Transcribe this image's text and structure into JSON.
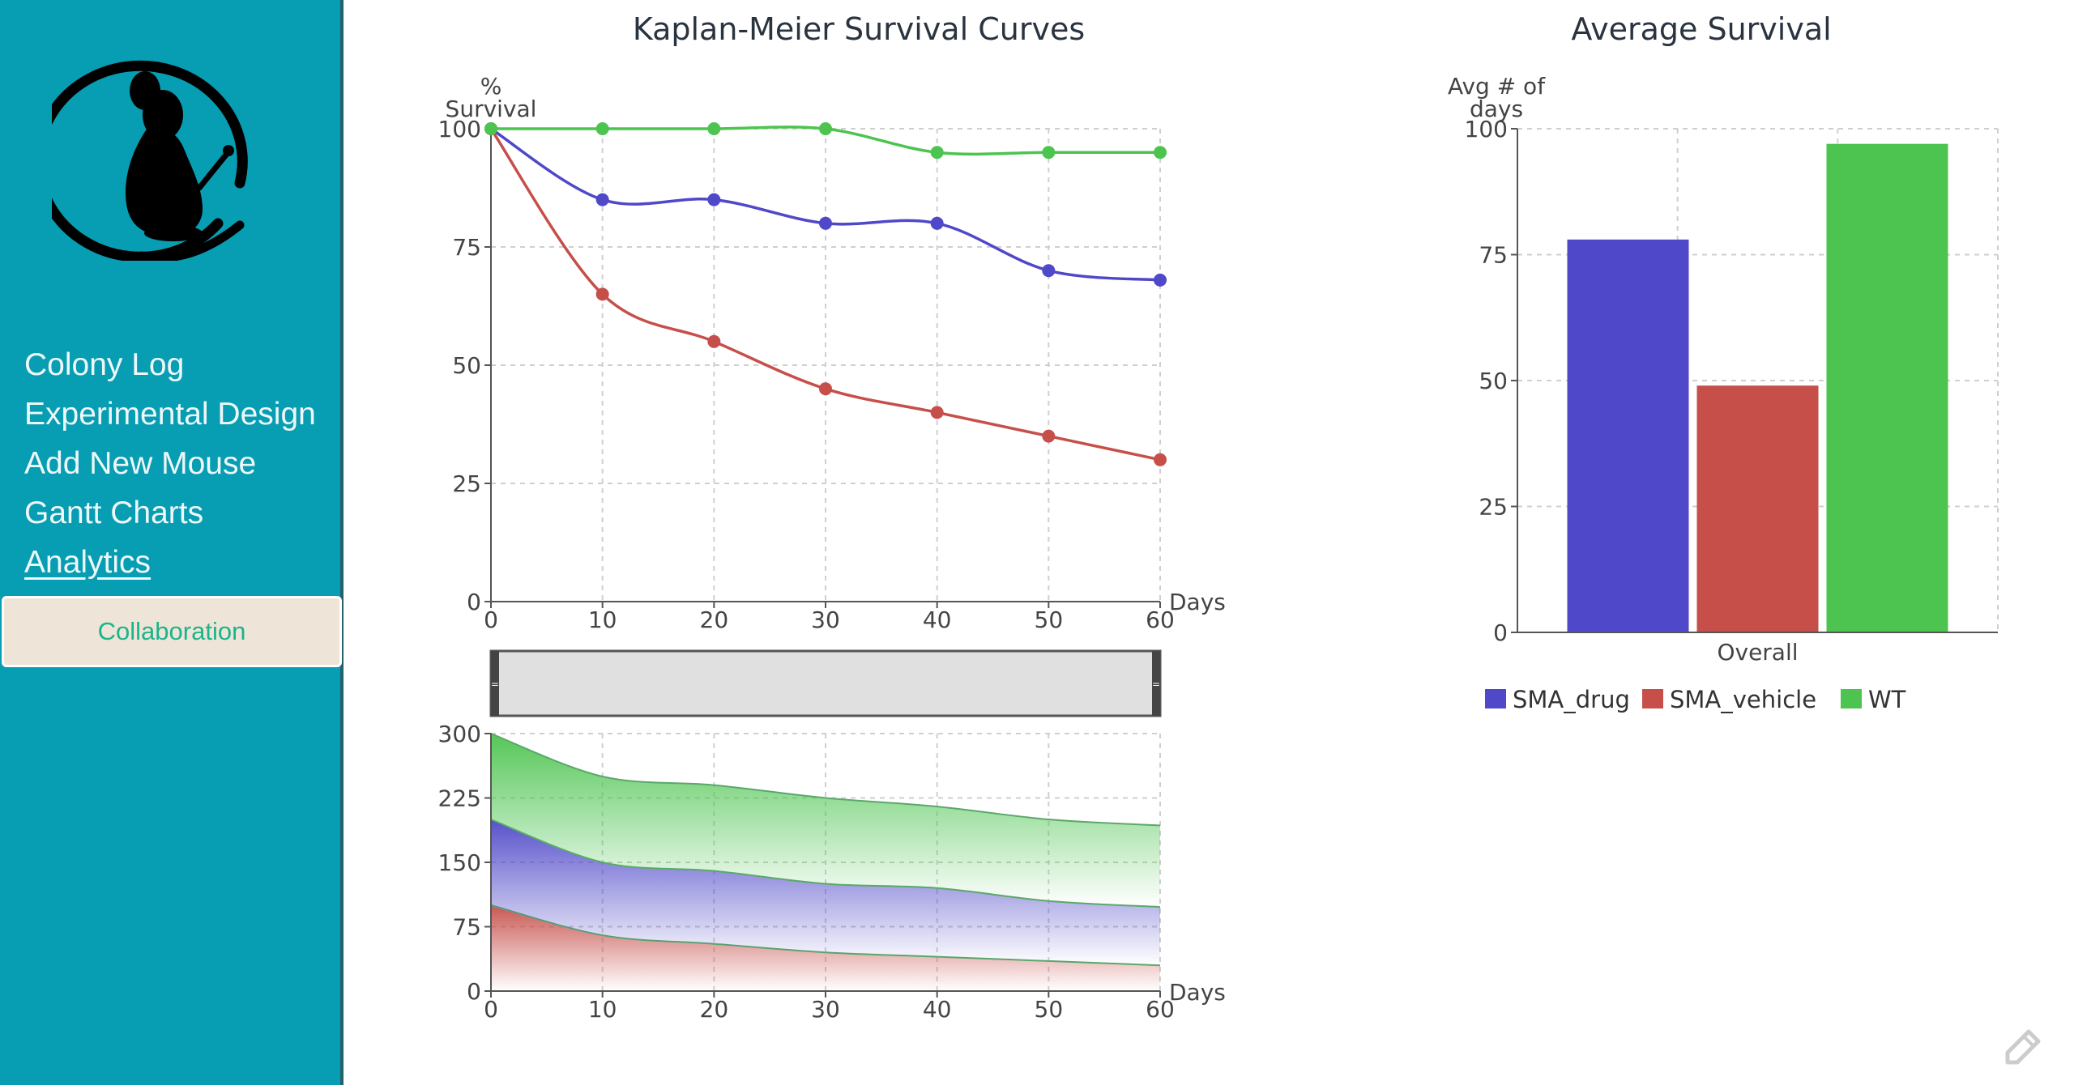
{
  "sidebar": {
    "items": [
      {
        "label": "Colony Log",
        "active": false
      },
      {
        "label": "Experimental Design",
        "active": false
      },
      {
        "label": "Add New Mouse",
        "active": false
      },
      {
        "label": "Gantt Charts",
        "active": false
      },
      {
        "label": "Analytics",
        "active": true
      }
    ],
    "collaboration_label": "Collaboration",
    "logo_icon": "mouse-logo-icon"
  },
  "colors": {
    "sidebar": "#079db2",
    "SMA_drug": "#4f48c8",
    "SMA_vehicle": "#c64f4a",
    "WT": "#4cc44f"
  },
  "chart_data": [
    {
      "type": "line",
      "title": "Kaplan-Meier Survival Curves",
      "xlabel": "Days",
      "ylabel": "% Survival",
      "x": [
        0,
        10,
        20,
        30,
        40,
        50,
        60
      ],
      "xlim": [
        0,
        60
      ],
      "ylim": [
        0,
        100
      ],
      "xticks": [
        "0",
        "10",
        "20",
        "30",
        "40",
        "50",
        "60"
      ],
      "yticks": [
        "0",
        "25",
        "50",
        "75",
        "100"
      ],
      "grid": true,
      "series": [
        {
          "name": "SMA_drug",
          "values": [
            100,
            85,
            85,
            80,
            80,
            70,
            68
          ]
        },
        {
          "name": "SMA_vehicle",
          "values": [
            100,
            65,
            55,
            45,
            40,
            35,
            30
          ]
        },
        {
          "name": "WT",
          "values": [
            100,
            100,
            100,
            100,
            95,
            95,
            95
          ]
        }
      ]
    },
    {
      "type": "area",
      "stacked": true,
      "role": "range-selector overview",
      "xlabel": "Days",
      "x": [
        0,
        10,
        20,
        30,
        40,
        50,
        60
      ],
      "xlim": [
        0,
        60
      ],
      "ylim": [
        0,
        300
      ],
      "xticks": [
        "0",
        "10",
        "20",
        "30",
        "40",
        "50",
        "60"
      ],
      "yticks": [
        "0",
        "75",
        "150",
        "225",
        "300"
      ],
      "grid": true,
      "series": [
        {
          "name": "SMA_vehicle",
          "values": [
            100,
            65,
            55,
            45,
            40,
            35,
            30
          ]
        },
        {
          "name": "SMA_drug",
          "values": [
            100,
            85,
            85,
            80,
            80,
            70,
            68
          ]
        },
        {
          "name": "WT",
          "values": [
            100,
            100,
            100,
            100,
            95,
            95,
            95
          ]
        }
      ]
    },
    {
      "type": "bar",
      "title": "Average Survival",
      "ylabel": "Avg # of days",
      "categories": [
        "Overall"
      ],
      "ylim": [
        0,
        100
      ],
      "yticks": [
        "0",
        "25",
        "50",
        "75",
        "100"
      ],
      "grid": true,
      "legend": "bottom",
      "series": [
        {
          "name": "SMA_drug",
          "values": [
            78
          ]
        },
        {
          "name": "SMA_vehicle",
          "values": [
            49
          ]
        },
        {
          "name": "WT",
          "values": [
            97
          ]
        }
      ]
    }
  ]
}
